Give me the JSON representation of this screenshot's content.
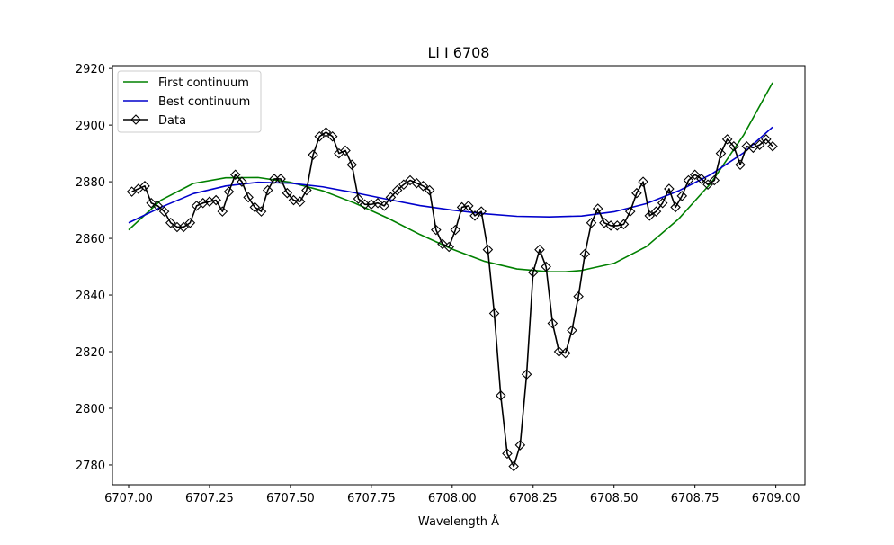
{
  "chart_data": {
    "type": "line",
    "title": "Li I 6708",
    "xlabel": "Wavelength Å",
    "ylabel": "",
    "xlim": [
      6706.95,
      6709.09
    ],
    "ylim": [
      2773,
      2921
    ],
    "x_ticks": [
      6707.0,
      6707.25,
      6707.5,
      6707.75,
      6708.0,
      6708.25,
      6708.5,
      6708.75,
      6709.0
    ],
    "x_tick_labels": [
      "6707.00",
      "6707.25",
      "6707.50",
      "6707.75",
      "6708.00",
      "6708.25",
      "6708.50",
      "6708.75",
      "6709.00"
    ],
    "y_ticks": [
      2780,
      2800,
      2820,
      2840,
      2860,
      2880,
      2900,
      2920
    ],
    "y_tick_labels": [
      "2780",
      "2800",
      "2820",
      "2840",
      "2860",
      "2880",
      "2900",
      "2920"
    ],
    "grid": false,
    "legend_position": "top-left",
    "series": [
      {
        "name": "First continuum",
        "color": "#008000",
        "marker": "none",
        "x": [
          6707.0,
          6707.1,
          6707.2,
          6707.3,
          6707.4,
          6707.5,
          6707.6,
          6707.7,
          6707.8,
          6707.9,
          6708.0,
          6708.1,
          6708.2,
          6708.3,
          6708.35,
          6708.4,
          6708.5,
          6708.6,
          6708.7,
          6708.8,
          6708.9,
          6708.99
        ],
        "values": [
          2863.0,
          2873.5,
          2879.4,
          2881.4,
          2881.5,
          2879.8,
          2876.8,
          2872.4,
          2867.2,
          2861.4,
          2856.2,
          2851.9,
          2849.2,
          2848.2,
          2848.2,
          2848.7,
          2851.2,
          2857.1,
          2866.9,
          2879.6,
          2896.4,
          2915.0
        ]
      },
      {
        "name": "Best continuum",
        "color": "#0000cc",
        "marker": "none",
        "x": [
          6707.0,
          6707.1,
          6707.2,
          6707.3,
          6707.4,
          6707.5,
          6707.6,
          6707.7,
          6707.8,
          6707.9,
          6708.0,
          6708.1,
          6708.2,
          6708.3,
          6708.4,
          6708.5,
          6708.6,
          6708.7,
          6708.8,
          6708.9,
          6708.99
        ],
        "values": [
          2865.5,
          2871.0,
          2875.8,
          2878.5,
          2879.8,
          2879.5,
          2878.2,
          2876.1,
          2873.8,
          2871.6,
          2870.0,
          2868.7,
          2867.8,
          2867.6,
          2867.9,
          2869.4,
          2872.3,
          2876.8,
          2882.6,
          2890.2,
          2899.3
        ]
      },
      {
        "name": "Data",
        "color": "#000000",
        "marker": "diamond",
        "x": [
          6707.01,
          6707.03,
          6707.05,
          6707.07,
          6707.09,
          6707.11,
          6707.13,
          6707.15,
          6707.17,
          6707.19,
          6707.21,
          6707.23,
          6707.25,
          6707.27,
          6707.29,
          6707.31,
          6707.33,
          6707.35,
          6707.37,
          6707.39,
          6707.41,
          6707.43,
          6707.45,
          6707.47,
          6707.49,
          6707.51,
          6707.53,
          6707.55,
          6707.57,
          6707.59,
          6707.61,
          6707.63,
          6707.65,
          6707.67,
          6707.69,
          6707.71,
          6707.73,
          6707.75,
          6707.77,
          6707.79,
          6707.81,
          6707.83,
          6707.85,
          6707.87,
          6707.89,
          6707.91,
          6707.93,
          6707.95,
          6707.97,
          6707.99,
          6708.01,
          6708.03,
          6708.05,
          6708.07,
          6708.09,
          6708.11,
          6708.13,
          6708.15,
          6708.17,
          6708.19,
          6708.21,
          6708.23,
          6708.25,
          6708.27,
          6708.29,
          6708.31,
          6708.33,
          6708.35,
          6708.37,
          6708.39,
          6708.41,
          6708.43,
          6708.45,
          6708.47,
          6708.49,
          6708.51,
          6708.53,
          6708.55,
          6708.57,
          6708.59,
          6708.61,
          6708.63,
          6708.65,
          6708.67,
          6708.69,
          6708.71,
          6708.73,
          6708.75,
          6708.77,
          6708.79,
          6708.81,
          6708.83,
          6708.85,
          6708.87,
          6708.89,
          6708.91,
          6708.93,
          6708.95,
          6708.97,
          6708.99
        ],
        "values": [
          2876.5,
          2877.5,
          2878.5,
          2872.5,
          2871.5,
          2869.5,
          2865.5,
          2864.0,
          2864.0,
          2865.5,
          2871.5,
          2872.5,
          2873.0,
          2873.5,
          2869.5,
          2876.5,
          2882.5,
          2880.0,
          2874.5,
          2871.0,
          2869.5,
          2877.0,
          2881.0,
          2881.0,
          2876.0,
          2873.5,
          2873.0,
          2877.0,
          2889.5,
          2896.0,
          2897.5,
          2896.0,
          2890.0,
          2891.0,
          2886.0,
          2874.0,
          2872.0,
          2872.0,
          2872.5,
          2871.5,
          2874.5,
          2877.0,
          2879.0,
          2880.5,
          2879.5,
          2878.5,
          2877.0,
          2863.0,
          2858.0,
          2857.0,
          2863.0,
          2871.0,
          2871.5,
          2868.0,
          2869.5,
          2856.0,
          2833.5,
          2804.5,
          2784.0,
          2779.5,
          2787.0,
          2812.0,
          2848.0,
          2856.0,
          2850.0,
          2830.0,
          2820.0,
          2819.5,
          2827.5,
          2839.5,
          2854.5,
          2865.5,
          2870.5,
          2865.5,
          2864.5,
          2864.5,
          2865.0,
          2869.5,
          2876.0,
          2880.0,
          2868.0,
          2869.5,
          2872.5,
          2877.5,
          2871.0,
          2875.0,
          2880.5,
          2882.5,
          2881.0,
          2879.0,
          2880.5,
          2890.0,
          2895.0,
          2892.5,
          2886.0,
          2892.5,
          2892.0,
          2893.0,
          2895.0,
          2892.5
        ]
      }
    ]
  }
}
